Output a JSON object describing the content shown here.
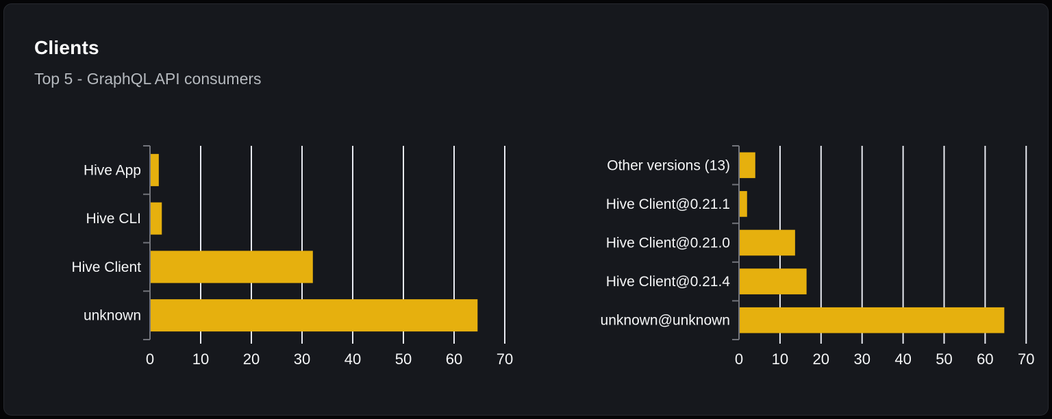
{
  "card": {
    "title": "Clients",
    "subtitle": "Top 5 - GraphQL API consumers"
  },
  "colors": {
    "page_bg": "#050507",
    "card_bg": "#16181d",
    "card_border": "#26292f",
    "title_text": "#ffffff",
    "subtitle_text": "#b5b9be",
    "bar": "#e6b00e",
    "gridline": "#e9ebf2",
    "axis": "#72747b",
    "label_text": "#f4f5f6"
  },
  "chart_data": [
    {
      "type": "bar",
      "orientation": "horizontal",
      "name": "clients-top5",
      "categories": [
        "Hive App",
        "Hive CLI",
        "Hive Client",
        "unknown"
      ],
      "values": [
        1.6,
        2.2,
        32,
        64.5
      ],
      "x_ticks": [
        0,
        10,
        20,
        30,
        40,
        50,
        60,
        70
      ],
      "xlim": [
        0,
        70
      ],
      "grid": true,
      "legend": "none",
      "xlabel": "",
      "ylabel": ""
    },
    {
      "type": "bar",
      "orientation": "horizontal",
      "name": "client-versions-top5",
      "categories": [
        "Other versions (13)",
        "Hive Client@0.21.1",
        "Hive Client@0.21.0",
        "Hive Client@0.21.4",
        "unknown@unknown"
      ],
      "values": [
        3.8,
        1.8,
        13.5,
        16.3,
        64.5
      ],
      "x_ticks": [
        0,
        10,
        20,
        30,
        40,
        50,
        60,
        70
      ],
      "xlim": [
        0,
        70
      ],
      "grid": true,
      "legend": "none",
      "xlabel": "",
      "ylabel": ""
    }
  ]
}
